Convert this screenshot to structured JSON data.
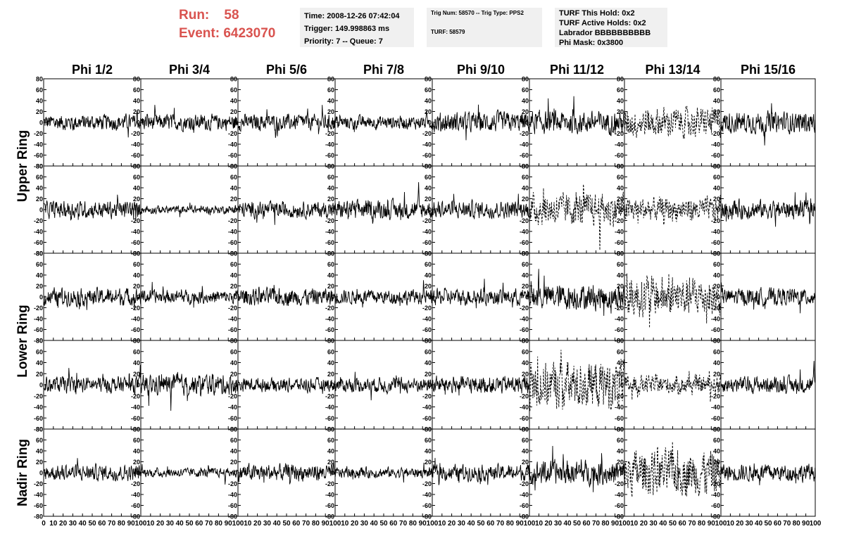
{
  "header": {
    "run_label": "Run:",
    "run_value": "58",
    "event_label": "Event:",
    "event_value": "6423070",
    "accent_color": "#d9534f"
  },
  "time_box": {
    "time": "Time: 2008-12-26 07:42:04",
    "trigger": "Trigger: 149.998863 ms",
    "priority": "Priority: 7 -- Queue: 7"
  },
  "trig_box": {
    "trig_line": "Trig Num: 58570 -- Trig Type: PPS2",
    "turf_line": "TURF: 58579"
  },
  "turf_box": {
    "this_hold": "TURF This Hold: 0x2",
    "active_holds": "TURF Active Holds: 0x2",
    "labrador": "Labrador BBBBBBBBBB",
    "phi_mask": "Phi Mask: 0x3800"
  },
  "chart_data": {
    "type": "line",
    "columns": [
      "Phi 1/2",
      "Phi 3/4",
      "Phi 5/6",
      "Phi 7/8",
      "Phi 9/10",
      "Phi 11/12",
      "Phi 13/14",
      "Phi 15/16"
    ],
    "ring_labels": [
      {
        "text": "Upper Ring",
        "rows": [
          0,
          1
        ]
      },
      {
        "text": "Lower Ring",
        "rows": [
          2,
          3
        ]
      },
      {
        "text": "Nadir Ring",
        "rows": [
          4
        ]
      }
    ],
    "rows": 5,
    "xlim": [
      0,
      100
    ],
    "ylim": [
      -80,
      80
    ],
    "x_ticks": [
      0,
      10,
      20,
      30,
      40,
      50,
      60,
      70,
      80,
      90,
      100
    ],
    "y_ticks": [
      -80,
      -60,
      -40,
      -20,
      0,
      20,
      40,
      60,
      80
    ],
    "samples_per_trace": 260,
    "amplitude": [
      [
        12,
        12,
        12,
        10,
        15,
        17,
        22,
        16
      ],
      [
        13,
        6,
        12,
        14,
        13,
        24,
        18,
        14
      ],
      [
        13,
        10,
        13,
        11,
        12,
        19,
        30,
        13
      ],
      [
        12,
        15,
        10,
        11,
        13,
        35,
        14,
        12
      ],
      [
        12,
        7,
        13,
        8,
        12,
        18,
        34,
        13
      ]
    ],
    "dashed": [
      [
        false,
        false,
        false,
        false,
        false,
        false,
        true,
        false
      ],
      [
        false,
        false,
        false,
        false,
        false,
        true,
        true,
        false
      ],
      [
        false,
        false,
        false,
        false,
        false,
        false,
        true,
        false
      ],
      [
        false,
        false,
        false,
        false,
        false,
        true,
        true,
        false
      ],
      [
        false,
        false,
        false,
        false,
        false,
        false,
        true,
        false
      ]
    ],
    "grid": false,
    "legend": "none"
  }
}
